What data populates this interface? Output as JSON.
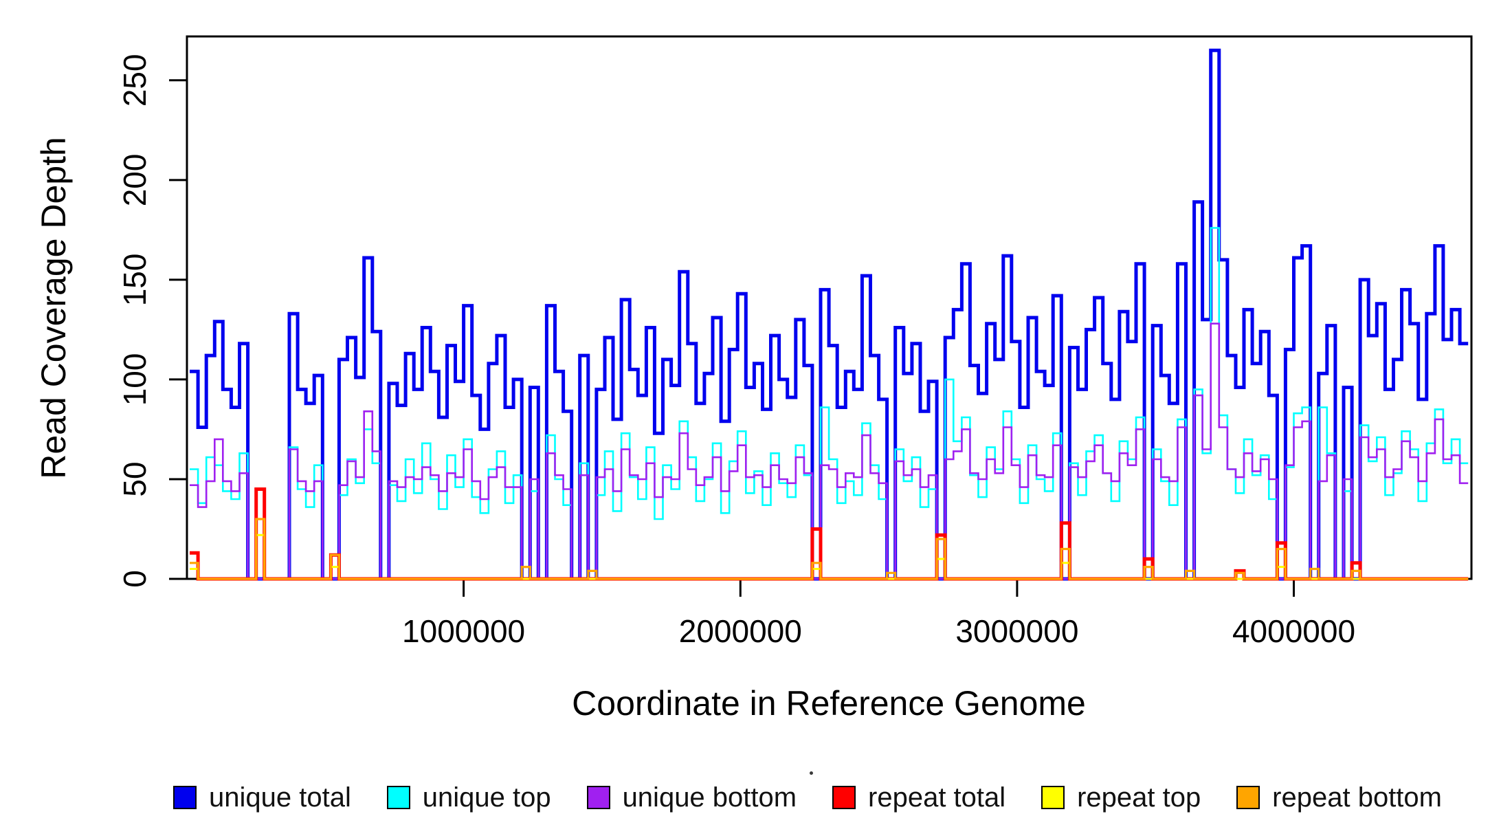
{
  "chart_data": {
    "type": "line",
    "subtype": "step",
    "title": "",
    "xlabel": "Coordinate in Reference Genome",
    "ylabel": "Read Coverage Depth",
    "xlim": [
      0,
      4642000
    ],
    "ylim": [
      0,
      272
    ],
    "x_ticks": [
      1000000,
      2000000,
      3000000,
      4000000
    ],
    "x_tick_labels": [
      "1000000",
      "2000000",
      "3000000",
      "4000000"
    ],
    "y_ticks": [
      0,
      50,
      100,
      150,
      200,
      250
    ],
    "y_tick_labels": [
      "0",
      "50",
      "100",
      "150",
      "200",
      "250"
    ],
    "grid": "off",
    "box": "full",
    "legend_position": "bottom",
    "x_start": 10000,
    "bin_width": 30000,
    "n_bins": 154,
    "series": [
      {
        "name": "unique total",
        "color": "#0000EE",
        "line_width": 5,
        "values": [
          104,
          76,
          112,
          129,
          95,
          86,
          118,
          0,
          0,
          0,
          0,
          0,
          133,
          95,
          88,
          102,
          0,
          0,
          110,
          121,
          101,
          161,
          124,
          0,
          98,
          87,
          113,
          95,
          126,
          104,
          81,
          117,
          99,
          137,
          92,
          75,
          108,
          122,
          86,
          100,
          0,
          96,
          0,
          137,
          104,
          84,
          0,
          112,
          0,
          95,
          121,
          80,
          140,
          105,
          92,
          126,
          73,
          110,
          97,
          154,
          118,
          88,
          103,
          131,
          79,
          115,
          143,
          96,
          108,
          85,
          122,
          100,
          91,
          130,
          107,
          0,
          145,
          117,
          86,
          104,
          95,
          152,
          112,
          90,
          0,
          126,
          103,
          118,
          84,
          99,
          0,
          121,
          135,
          158,
          107,
          93,
          128,
          110,
          162,
          119,
          86,
          131,
          104,
          97,
          142,
          0,
          116,
          95,
          125,
          141,
          108,
          90,
          134,
          119,
          158,
          0,
          127,
          102,
          88,
          158,
          0,
          189,
          130,
          265,
          160,
          112,
          96,
          135,
          108,
          124,
          92,
          0,
          115,
          161,
          167,
          0,
          103,
          127,
          0,
          96,
          0,
          150,
          122,
          138,
          95,
          110,
          145,
          128,
          90,
          133,
          167,
          120,
          135,
          118
        ]
      },
      {
        "name": "unique top",
        "color": "#00FFFF",
        "line_width": 2.6,
        "values": [
          55,
          38,
          61,
          57,
          44,
          40,
          63,
          0,
          0,
          0,
          0,
          0,
          66,
          45,
          36,
          57,
          0,
          0,
          42,
          60,
          48,
          75,
          58,
          0,
          47,
          39,
          60,
          43,
          68,
          50,
          35,
          62,
          46,
          70,
          41,
          33,
          55,
          64,
          38,
          52,
          0,
          44,
          0,
          72,
          50,
          37,
          0,
          58,
          0,
          42,
          64,
          34,
          73,
          51,
          40,
          66,
          30,
          57,
          45,
          79,
          61,
          39,
          50,
          68,
          33,
          59,
          74,
          43,
          54,
          37,
          63,
          48,
          41,
          67,
          52,
          0,
          86,
          60,
          38,
          49,
          42,
          78,
          57,
          40,
          0,
          65,
          49,
          61,
          36,
          45,
          0,
          100,
          69,
          81,
          52,
          41,
          66,
          55,
          84,
          60,
          38,
          67,
          50,
          44,
          73,
          0,
          58,
          42,
          64,
          72,
          53,
          39,
          69,
          60,
          81,
          0,
          65,
          49,
          37,
          80,
          0,
          95,
          63,
          176,
          82,
          55,
          43,
          70,
          52,
          62,
          40,
          0,
          56,
          83,
          86,
          0,
          86,
          63,
          0,
          44,
          0,
          77,
          59,
          71,
          42,
          53,
          74,
          65,
          39,
          68,
          85,
          58,
          70,
          58
        ]
      },
      {
        "name": "unique bottom",
        "color": "#A020F0",
        "line_width": 2.6,
        "values": [
          47,
          36,
          49,
          70,
          49,
          44,
          53,
          0,
          0,
          0,
          0,
          0,
          65,
          49,
          44,
          49,
          0,
          0,
          47,
          59,
          51,
          84,
          64,
          0,
          49,
          46,
          51,
          50,
          56,
          52,
          44,
          53,
          51,
          65,
          49,
          40,
          51,
          56,
          46,
          46,
          0,
          50,
          0,
          63,
          52,
          45,
          0,
          52,
          0,
          51,
          55,
          44,
          65,
          52,
          50,
          58,
          41,
          51,
          50,
          73,
          55,
          47,
          51,
          61,
          44,
          54,
          67,
          51,
          52,
          46,
          57,
          50,
          48,
          61,
          53,
          0,
          57,
          55,
          46,
          53,
          51,
          72,
          53,
          48,
          0,
          59,
          52,
          55,
          46,
          52,
          0,
          60,
          64,
          75,
          53,
          50,
          60,
          53,
          76,
          57,
          46,
          62,
          52,
          51,
          67,
          0,
          56,
          51,
          59,
          67,
          53,
          49,
          63,
          57,
          75,
          0,
          60,
          51,
          49,
          76,
          0,
          92,
          65,
          128,
          76,
          55,
          51,
          63,
          54,
          60,
          50,
          0,
          57,
          76,
          79,
          0,
          49,
          62,
          0,
          50,
          0,
          71,
          61,
          65,
          51,
          55,
          69,
          61,
          49,
          63,
          80,
          60,
          62,
          48
        ]
      },
      {
        "name": "repeat total",
        "color": "#FF0000",
        "line_width": 5,
        "values": [
          13,
          0,
          0,
          0,
          0,
          0,
          0,
          0,
          45,
          0,
          0,
          0,
          0,
          0,
          0,
          0,
          0,
          12,
          0,
          0,
          0,
          0,
          0,
          0,
          0,
          0,
          0,
          0,
          0,
          0,
          0,
          0,
          0,
          0,
          0,
          0,
          0,
          0,
          0,
          0,
          0,
          0,
          0,
          0,
          0,
          0,
          0,
          0,
          0,
          0,
          0,
          0,
          0,
          0,
          0,
          0,
          0,
          0,
          0,
          0,
          0,
          0,
          0,
          0,
          0,
          0,
          0,
          0,
          0,
          0,
          0,
          0,
          0,
          0,
          0,
          25,
          0,
          0,
          0,
          0,
          0,
          0,
          0,
          0,
          0,
          0,
          0,
          0,
          0,
          0,
          22,
          0,
          0,
          0,
          0,
          0,
          0,
          0,
          0,
          0,
          0,
          0,
          0,
          0,
          0,
          28,
          0,
          0,
          0,
          0,
          0,
          0,
          0,
          0,
          0,
          10,
          0,
          0,
          0,
          0,
          0,
          0,
          0,
          0,
          0,
          0,
          4,
          0,
          0,
          0,
          0,
          18,
          0,
          0,
          0,
          0,
          0,
          0,
          0,
          0,
          8,
          0,
          0,
          0,
          0,
          0,
          0,
          0,
          0,
          0,
          0,
          0,
          0,
          0
        ]
      },
      {
        "name": "repeat top",
        "color": "#FFFF00",
        "line_width": 3,
        "values": [
          5,
          0,
          0,
          0,
          0,
          0,
          0,
          0,
          22,
          0,
          0,
          0,
          0,
          0,
          0,
          0,
          0,
          6,
          0,
          0,
          0,
          0,
          0,
          0,
          0,
          0,
          0,
          0,
          0,
          0,
          0,
          0,
          0,
          0,
          0,
          0,
          0,
          0,
          0,
          0,
          0,
          0,
          0,
          0,
          0,
          0,
          0,
          0,
          0,
          0,
          0,
          0,
          0,
          0,
          0,
          0,
          0,
          0,
          0,
          0,
          0,
          0,
          0,
          0,
          0,
          0,
          0,
          0,
          0,
          0,
          0,
          0,
          0,
          0,
          0,
          5,
          0,
          0,
          0,
          0,
          0,
          0,
          0,
          0,
          0,
          0,
          0,
          0,
          0,
          0,
          10,
          0,
          0,
          0,
          0,
          0,
          0,
          0,
          0,
          0,
          0,
          0,
          0,
          0,
          0,
          8,
          0,
          0,
          0,
          0,
          0,
          0,
          0,
          0,
          0,
          0,
          0,
          0,
          0,
          0,
          0,
          0,
          0,
          0,
          0,
          0,
          0,
          0,
          0,
          0,
          0,
          6,
          0,
          0,
          0,
          0,
          0,
          0,
          0,
          0,
          0,
          0,
          0,
          0,
          0,
          0,
          0,
          0,
          0,
          0,
          0,
          0,
          0,
          0
        ]
      },
      {
        "name": "repeat bottom",
        "color": "#FFA500",
        "line_width": 3.2,
        "values": [
          8,
          0,
          0,
          0,
          0,
          0,
          0,
          0,
          30,
          0,
          0,
          0,
          0,
          0,
          0,
          0,
          0,
          12,
          0,
          0,
          0,
          0,
          0,
          0,
          0,
          0,
          0,
          0,
          0,
          0,
          0,
          0,
          0,
          0,
          0,
          0,
          0,
          0,
          0,
          0,
          6,
          0,
          0,
          0,
          0,
          0,
          0,
          0,
          4,
          0,
          0,
          0,
          0,
          0,
          0,
          0,
          0,
          0,
          0,
          0,
          0,
          0,
          0,
          0,
          0,
          0,
          0,
          0,
          0,
          0,
          0,
          0,
          0,
          0,
          0,
          8,
          0,
          0,
          0,
          0,
          0,
          0,
          0,
          0,
          3,
          0,
          0,
          0,
          0,
          0,
          20,
          0,
          0,
          0,
          0,
          0,
          0,
          0,
          0,
          0,
          0,
          0,
          0,
          0,
          0,
          15,
          0,
          0,
          0,
          0,
          0,
          0,
          0,
          0,
          0,
          6,
          0,
          0,
          0,
          0,
          4,
          0,
          0,
          0,
          0,
          0,
          3,
          0,
          0,
          0,
          0,
          15,
          0,
          0,
          0,
          5,
          0,
          0,
          0,
          0,
          4,
          0,
          0,
          0,
          0,
          0,
          0,
          0,
          0,
          0,
          0,
          0,
          0,
          0
        ]
      }
    ]
  }
}
